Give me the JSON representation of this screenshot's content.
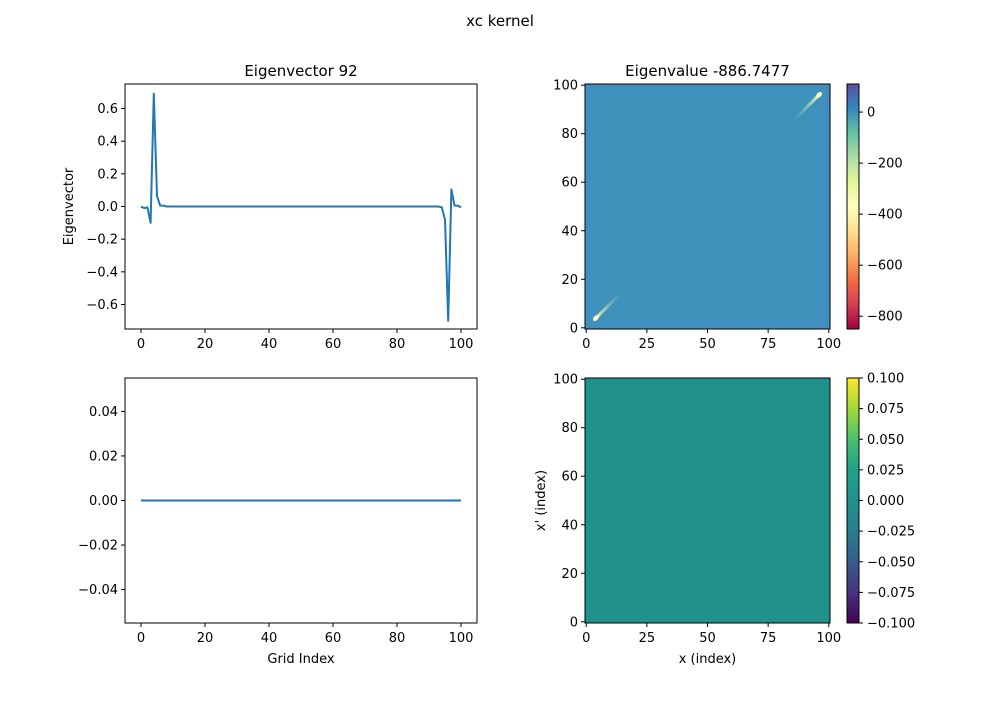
{
  "figure": {
    "suptitle": "xc kernel"
  },
  "chart_data": [
    {
      "type": "line",
      "title": "Eigenvector 92",
      "xlabel": "",
      "ylabel": "Eigenvector",
      "xlim": [
        -5,
        105
      ],
      "ylim": [
        -0.75,
        0.75
      ],
      "xticks": [
        0,
        20,
        40,
        60,
        80,
        100
      ],
      "yticks": [
        -0.6,
        -0.4,
        -0.2,
        0.0,
        0.2,
        0.4,
        0.6
      ],
      "xtick_labels": [
        "0",
        "20",
        "40",
        "60",
        "80",
        "100"
      ],
      "ytick_labels": [
        "−0.6",
        "−0.4",
        "−0.2",
        "0.0",
        "0.2",
        "0.4",
        "0.6"
      ],
      "color": "#1f77b4",
      "x": [
        0,
        1,
        2,
        3,
        4,
        5,
        6,
        7,
        8,
        10,
        20,
        40,
        60,
        80,
        92,
        93,
        94,
        95,
        96,
        97,
        98,
        99,
        100
      ],
      "y": [
        0.0,
        -0.01,
        -0.005,
        -0.1,
        0.69,
        0.065,
        0.005,
        0.005,
        0.0,
        0.0,
        0.0,
        0.0,
        0.0,
        0.0,
        0.0,
        0.0,
        -0.005,
        -0.08,
        -0.7,
        0.105,
        0.005,
        0.005,
        -0.005
      ]
    },
    {
      "type": "heatmap",
      "title": "Eigenvalue -886.7477",
      "xlabel": "",
      "ylabel": "",
      "xlim": [
        -0.5,
        100.5
      ],
      "ylim": [
        -0.5,
        100.5
      ],
      "xticks": [
        0,
        25,
        50,
        75,
        100
      ],
      "yticks": [
        0,
        20,
        40,
        60,
        80,
        100
      ],
      "xtick_labels": [
        "0",
        "25",
        "50",
        "75",
        "100"
      ],
      "ytick_labels": [
        "0",
        "20",
        "40",
        "60",
        "80",
        "100"
      ],
      "colormap": "Spectral",
      "background_value": 0,
      "border_value": 5,
      "bright_spots": [
        {
          "x": 4,
          "y": 4,
          "value": -600
        },
        {
          "x": 96,
          "y": 96,
          "value": -600
        }
      ],
      "colorbar": {
        "range": [
          -850,
          110
        ],
        "ticks": [
          0,
          -200,
          -400,
          -600,
          -800
        ],
        "tick_labels": [
          "0",
          "−200",
          "−400",
          "−600",
          "−800"
        ]
      }
    },
    {
      "type": "line",
      "title": "",
      "xlabel": "Grid Index",
      "ylabel": "",
      "xlim": [
        -5,
        105
      ],
      "ylim": [
        -0.055,
        0.055
      ],
      "xticks": [
        0,
        20,
        40,
        60,
        80,
        100
      ],
      "yticks": [
        -0.04,
        -0.02,
        0.0,
        0.02,
        0.04
      ],
      "xtick_labels": [
        "0",
        "20",
        "40",
        "60",
        "80",
        "100"
      ],
      "ytick_labels": [
        "−0.04",
        "−0.02",
        "0.00",
        "0.02",
        "0.04"
      ],
      "color": "#1f77b4",
      "x": [
        0,
        100
      ],
      "y": [
        0.0,
        0.0
      ]
    },
    {
      "type": "heatmap",
      "title": "",
      "xlabel": "x (index)",
      "ylabel": "x' (index)",
      "xlim": [
        -0.5,
        100.5
      ],
      "ylim": [
        -0.5,
        100.5
      ],
      "xticks": [
        0,
        25,
        50,
        75,
        100
      ],
      "yticks": [
        0,
        20,
        40,
        60,
        80,
        100
      ],
      "xtick_labels": [
        "0",
        "25",
        "50",
        "75",
        "100"
      ],
      "ytick_labels": [
        "0",
        "20",
        "40",
        "60",
        "80",
        "100"
      ],
      "colormap": "viridis",
      "uniform_value": 0.0,
      "colorbar": {
        "range": [
          -0.1,
          0.1
        ],
        "ticks": [
          0.1,
          0.075,
          0.05,
          0.025,
          0.0,
          -0.025,
          -0.05,
          -0.075,
          -0.1
        ],
        "tick_labels": [
          "0.100",
          "0.075",
          "0.050",
          "0.025",
          "0.000",
          "−0.025",
          "−0.050",
          "−0.075",
          "−0.100"
        ]
      }
    }
  ]
}
